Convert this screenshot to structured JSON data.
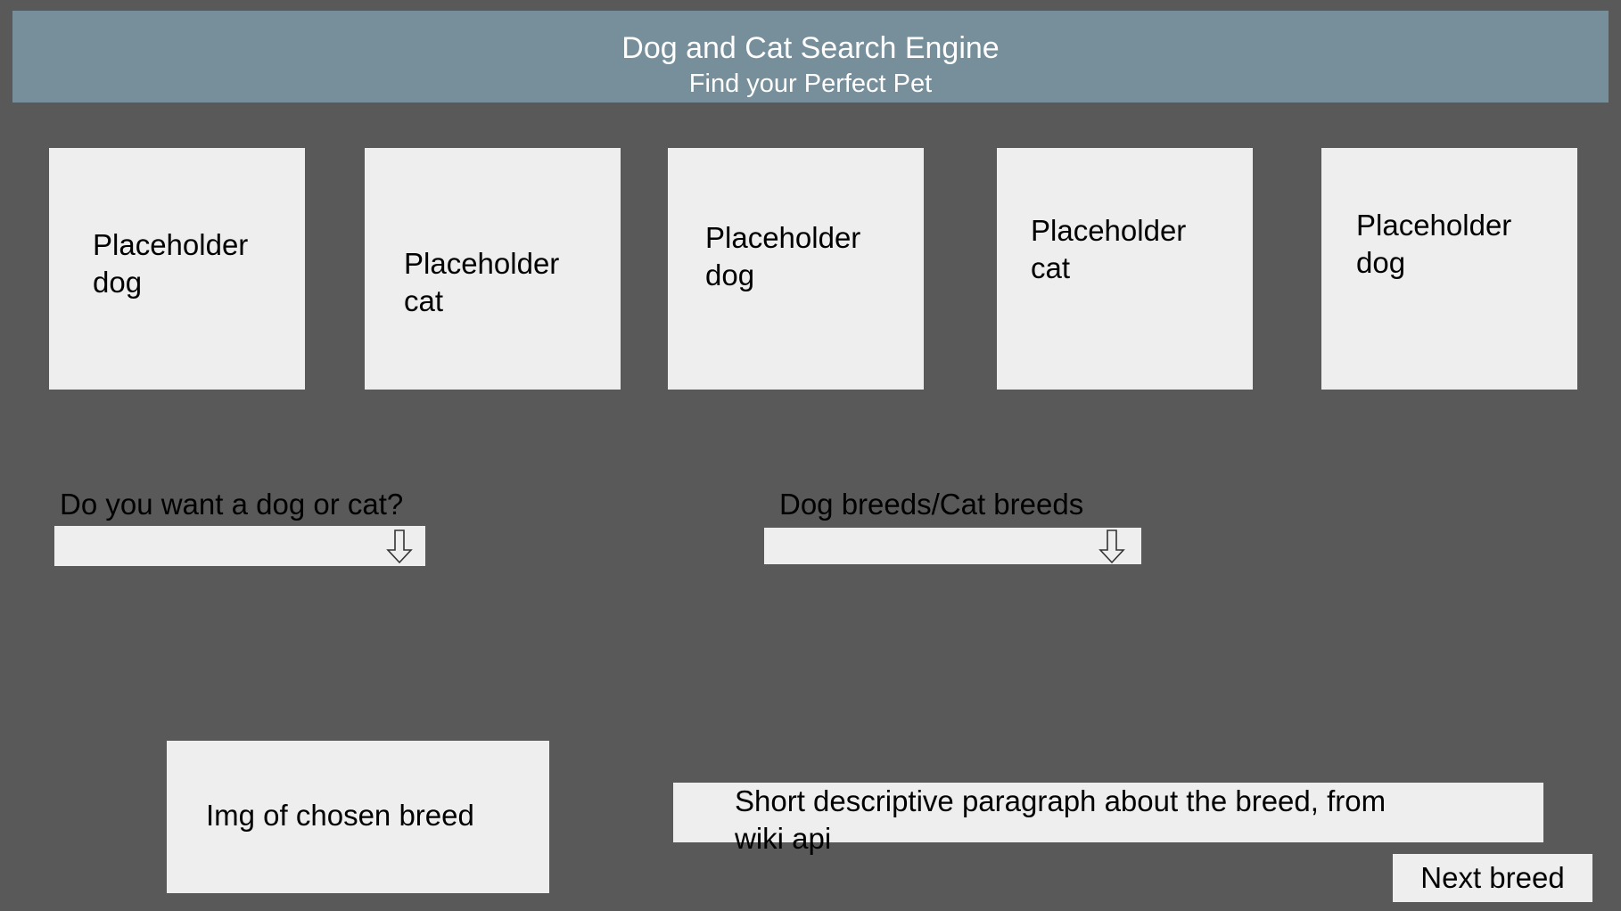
{
  "header": {
    "title": "Dog and Cat Search Engine",
    "subtitle": "Find your Perfect Pet"
  },
  "cards": [
    {
      "label": "Placeholder\ndog"
    },
    {
      "label": "Placeholder\ncat"
    },
    {
      "label": "Placeholder\ndog"
    },
    {
      "label": "Placeholder\ncat"
    },
    {
      "label": "Placeholder\ndog"
    }
  ],
  "pet_type": {
    "label": "Do you want a dog or cat?",
    "value": ""
  },
  "breeds": {
    "label": "Dog breeds/Cat breeds",
    "value": ""
  },
  "breed_image": {
    "label": "Img of chosen breed"
  },
  "description": {
    "line1": "Short descriptive paragraph about the breed, from",
    "line2": "wiki api"
  },
  "next_button": {
    "label": "Next breed"
  },
  "icons": {
    "dropdown": "down-arrow-icon"
  },
  "colors": {
    "background": "#595959",
    "header": "#778f9b",
    "panel": "#eeeeee"
  }
}
